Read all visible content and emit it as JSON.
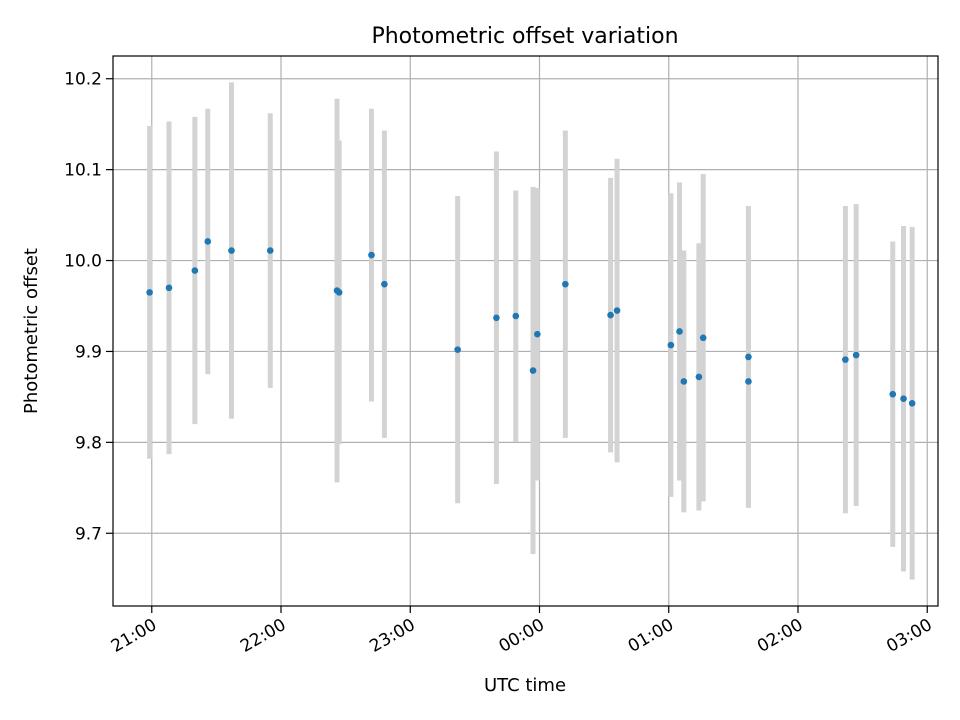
{
  "chart_data": {
    "type": "scatter",
    "title": "Photometric offset variation",
    "xlabel": "UTC time",
    "ylabel": "Photometric offset",
    "x_format": "HH:MM",
    "xlim": [
      "20:42",
      "03:05"
    ],
    "ylim": [
      9.62,
      10.225
    ],
    "grid": true,
    "legend": "none",
    "x_ticks": [
      "21:00",
      "22:00",
      "23:00",
      "00:00",
      "01:00",
      "02:00",
      "03:00"
    ],
    "y_ticks": [
      9.7,
      9.8,
      9.9,
      10.0,
      10.1,
      10.2
    ],
    "y_tick_labels": [
      "9.7",
      "9.8",
      "9.9",
      "10.0",
      "10.1",
      "10.2"
    ],
    "marker_color": "#1f77b4",
    "errorbar_color": "#d3d3d3",
    "points": [
      {
        "t": "20:59",
        "y": 9.965,
        "err": 0.183
      },
      {
        "t": "21:08",
        "y": 9.97,
        "err": 0.183
      },
      {
        "t": "21:20",
        "y": 9.989,
        "err": 0.169
      },
      {
        "t": "21:26",
        "y": 10.021,
        "err": 0.146
      },
      {
        "t": "21:37",
        "y": 10.011,
        "err": 0.185
      },
      {
        "t": "21:55",
        "y": 10.011,
        "err": 0.151
      },
      {
        "t": "22:26",
        "y": 9.967,
        "err": 0.211
      },
      {
        "t": "22:27",
        "y": 9.965,
        "err": 0.167
      },
      {
        "t": "22:42",
        "y": 10.006,
        "err": 0.161
      },
      {
        "t": "22:48",
        "y": 9.974,
        "err": 0.169
      },
      {
        "t": "23:22",
        "y": 9.902,
        "err": 0.169
      },
      {
        "t": "23:40",
        "y": 9.937,
        "err": 0.183
      },
      {
        "t": "23:49",
        "y": 9.939,
        "err": 0.138
      },
      {
        "t": "23:57",
        "y": 9.879,
        "err": 0.202
      },
      {
        "t": "23:59",
        "y": 9.919,
        "err": 0.161
      },
      {
        "t": "00:12",
        "y": 9.974,
        "err": 0.169
      },
      {
        "t": "00:33",
        "y": 9.94,
        "err": 0.151
      },
      {
        "t": "00:36",
        "y": 9.945,
        "err": 0.167
      },
      {
        "t": "01:01",
        "y": 9.907,
        "err": 0.167
      },
      {
        "t": "01:05",
        "y": 9.922,
        "err": 0.164
      },
      {
        "t": "01:07",
        "y": 9.867,
        "err": 0.144
      },
      {
        "t": "01:14",
        "y": 9.872,
        "err": 0.147
      },
      {
        "t": "01:16",
        "y": 9.915,
        "err": 0.18
      },
      {
        "t": "01:37",
        "y": 9.894,
        "err": 0.166
      },
      {
        "t": "01:37",
        "y": 9.867,
        "err": 0.137
      },
      {
        "t": "02:22",
        "y": 9.891,
        "err": 0.169
      },
      {
        "t": "02:27",
        "y": 9.896,
        "err": 0.166
      },
      {
        "t": "02:44",
        "y": 9.853,
        "err": 0.168
      },
      {
        "t": "02:49",
        "y": 9.848,
        "err": 0.19
      },
      {
        "t": "02:53",
        "y": 9.843,
        "err": 0.194
      }
    ]
  }
}
